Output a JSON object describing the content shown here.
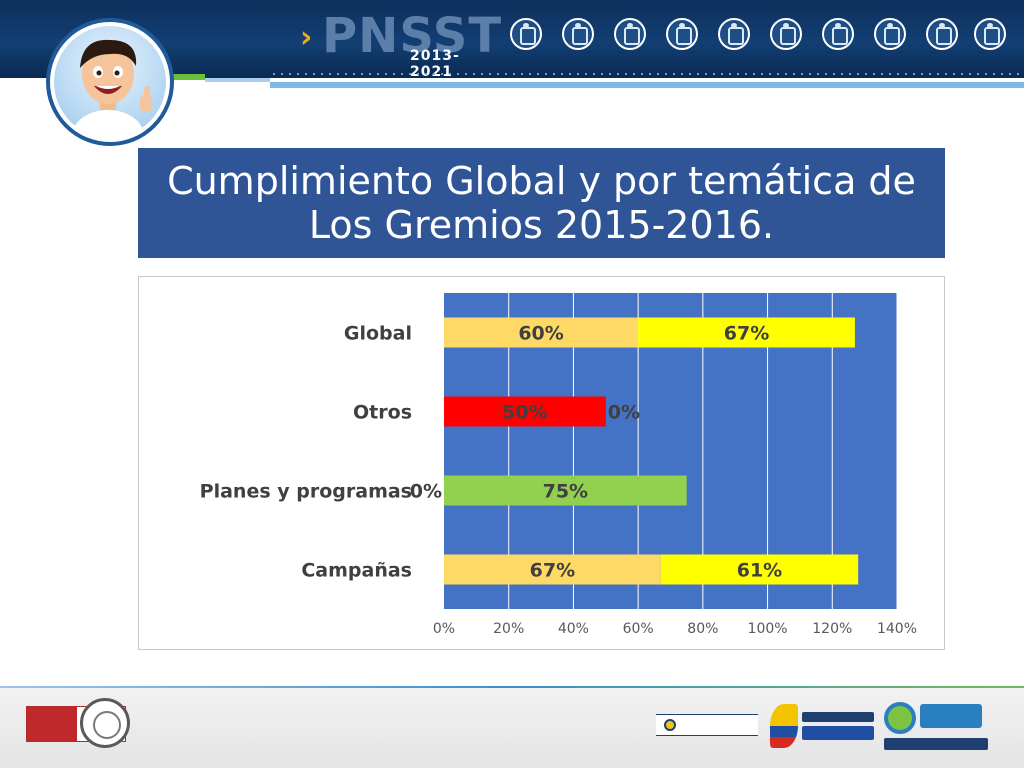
{
  "header": {
    "brand_name": "PNSST",
    "brand_years": "2013-2021",
    "icon_names": [
      "worker-icon",
      "workers-group-icon",
      "document-icon",
      "tools-icon",
      "safety-icon",
      "construction-icon",
      "miner-icon",
      "health-worker-icon",
      "doctor-icon",
      "scientist-icon"
    ]
  },
  "slide": {
    "title": "Cumplimiento Global y por temática de Los Gremios 2015-2016."
  },
  "chart_data": {
    "type": "bar",
    "orientation": "horizontal",
    "stacked": true,
    "categories": [
      "Global",
      "Otros",
      "Planes y programas",
      "Campañas"
    ],
    "series": [
      {
        "values": [
          0.6,
          0.5,
          0.0,
          0.67
        ],
        "labels": [
          "60%",
          "50%",
          "0%",
          "67%"
        ],
        "colors": [
          "#ffd966",
          "#ff0000",
          "#92d050",
          "#ffd966"
        ]
      },
      {
        "values": [
          0.67,
          0.0,
          0.75,
          0.61
        ],
        "labels": [
          "67%",
          "0%",
          "75%",
          "61%"
        ],
        "colors": [
          "#ffff00",
          "#ffff00",
          "#92d050",
          "#ffff00"
        ]
      }
    ],
    "xlim": [
      0,
      1.4
    ],
    "xticks": [
      "0%",
      "20%",
      "40%",
      "60%",
      "80%",
      "100%",
      "120%",
      "140%"
    ],
    "xtick_values": [
      0,
      0.2,
      0.4,
      0.6,
      0.8,
      1.0,
      1.2,
      1.4
    ],
    "plot_background": "#4472c4",
    "grid": true,
    "legend": "none"
  },
  "footer": {
    "certification": "BUREAU VERITAS Certification",
    "logos": [
      "mintrabajo-logo",
      "todos-por-un-nuevo-pais-logo",
      "oiss-logo"
    ]
  },
  "colors": {
    "header_bg": "#0d2f5c",
    "title_bg": "#2f5597",
    "accent_orange": "#f0a820"
  }
}
